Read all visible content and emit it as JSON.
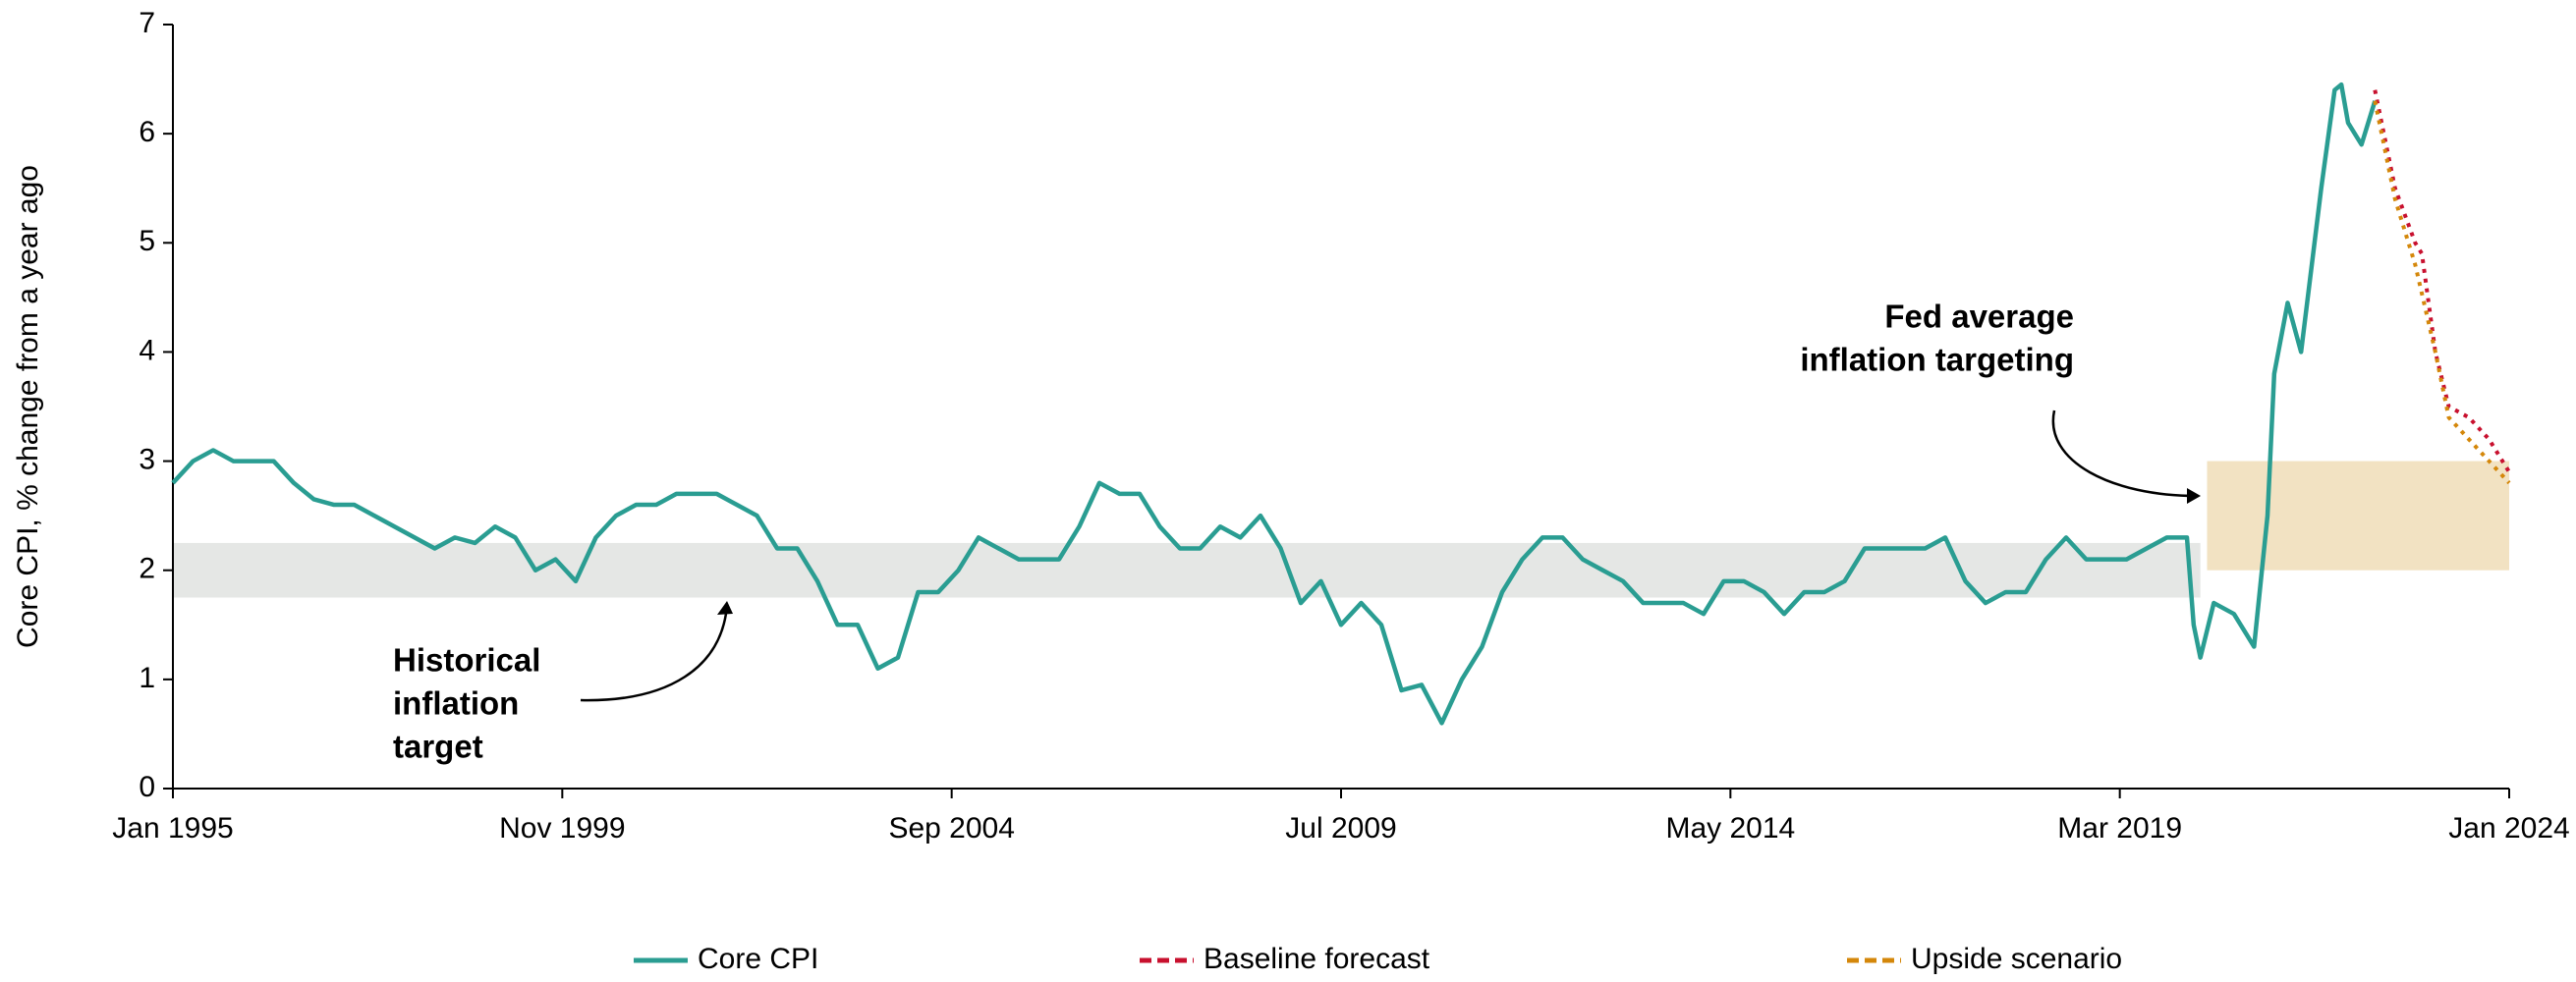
{
  "chart_data": {
    "type": "line",
    "y_label": "Core CPI, % change from a year ago",
    "xlim": [
      "1995-01",
      "2024-01"
    ],
    "xticks": [
      {
        "value": "1995-01",
        "label": "Jan 1995"
      },
      {
        "value": "1999-11",
        "label": "Nov 1999"
      },
      {
        "value": "2004-09",
        "label": "Sep 2004"
      },
      {
        "value": "2009-07",
        "label": "Jul 2009"
      },
      {
        "value": "2014-05",
        "label": "May 2014"
      },
      {
        "value": "2019-03",
        "label": "Mar 2019"
      },
      {
        "value": "2024-01",
        "label": "Jan 2024"
      }
    ],
    "ylim": [
      0,
      7
    ],
    "yticks": [
      0,
      1,
      2,
      3,
      4,
      5,
      6,
      7
    ],
    "bands": [
      {
        "x0": "1995-01",
        "x1": "2020-03",
        "y0": 1.75,
        "y1": 2.25,
        "color": "#e5e7e5"
      },
      {
        "x0": "2020-04",
        "x1": "2024-01",
        "y0": 2,
        "y1": 3,
        "color": "#f2e2c2"
      }
    ],
    "annotations": [
      {
        "lines": [
          "Historical",
          "inflation",
          "target"
        ]
      },
      {
        "lines": [
          "Fed average",
          "inflation targeting"
        ]
      }
    ],
    "series": [
      {
        "name": "Core CPI",
        "color": "#2a9d92",
        "x": [
          "1995-01",
          "1995-04",
          "1995-07",
          "1995-10",
          "1996-01",
          "1996-04",
          "1996-07",
          "1996-10",
          "1997-01",
          "1997-04",
          "1997-07",
          "1997-10",
          "1998-01",
          "1998-04",
          "1998-07",
          "1998-10",
          "1999-01",
          "1999-04",
          "1999-07",
          "1999-10",
          "2000-01",
          "2000-04",
          "2000-07",
          "2000-10",
          "2001-01",
          "2001-04",
          "2001-07",
          "2001-10",
          "2002-01",
          "2002-04",
          "2002-07",
          "2002-10",
          "2003-01",
          "2003-04",
          "2003-07",
          "2003-10",
          "2004-01",
          "2004-04",
          "2004-07",
          "2004-10",
          "2005-01",
          "2005-04",
          "2005-07",
          "2005-10",
          "2006-01",
          "2006-04",
          "2006-07",
          "2006-10",
          "2007-01",
          "2007-04",
          "2007-07",
          "2007-10",
          "2008-01",
          "2008-04",
          "2008-07",
          "2008-10",
          "2009-01",
          "2009-04",
          "2009-07",
          "2009-10",
          "2010-01",
          "2010-04",
          "2010-07",
          "2010-10",
          "2011-01",
          "2011-04",
          "2011-07",
          "2011-10",
          "2012-01",
          "2012-04",
          "2012-07",
          "2012-10",
          "2013-01",
          "2013-04",
          "2013-07",
          "2013-10",
          "2014-01",
          "2014-04",
          "2014-07",
          "2014-10",
          "2015-01",
          "2015-04",
          "2015-07",
          "2015-10",
          "2016-01",
          "2016-04",
          "2016-07",
          "2016-10",
          "2017-01",
          "2017-04",
          "2017-07",
          "2017-10",
          "2018-01",
          "2018-04",
          "2018-07",
          "2018-10",
          "2019-01",
          "2019-04",
          "2019-07",
          "2019-10",
          "2020-01",
          "2020-02",
          "2020-03",
          "2020-05",
          "2020-08",
          "2020-11",
          "2021-01",
          "2021-02",
          "2021-04",
          "2021-06",
          "2021-07",
          "2021-09",
          "2021-11",
          "2021-12",
          "2022-01",
          "2022-03",
          "2022-05"
        ],
        "values": [
          2.8,
          3.0,
          3.1,
          3.0,
          3.0,
          3.0,
          2.8,
          2.65,
          2.6,
          2.6,
          2.5,
          2.4,
          2.3,
          2.2,
          2.3,
          2.25,
          2.4,
          2.3,
          2.0,
          2.1,
          1.9,
          2.3,
          2.5,
          2.6,
          2.6,
          2.7,
          2.7,
          2.7,
          2.6,
          2.5,
          2.2,
          2.2,
          1.9,
          1.5,
          1.5,
          1.1,
          1.2,
          1.8,
          1.8,
          2.0,
          2.3,
          2.2,
          2.1,
          2.1,
          2.1,
          2.4,
          2.8,
          2.7,
          2.7,
          2.4,
          2.2,
          2.2,
          2.4,
          2.3,
          2.5,
          2.2,
          1.7,
          1.9,
          1.5,
          1.7,
          1.5,
          0.9,
          0.95,
          0.6,
          1.0,
          1.3,
          1.8,
          2.1,
          2.3,
          2.3,
          2.1,
          2.0,
          1.9,
          1.7,
          1.7,
          1.7,
          1.6,
          1.9,
          1.9,
          1.8,
          1.6,
          1.8,
          1.8,
          1.9,
          2.2,
          2.2,
          2.2,
          2.2,
          2.3,
          1.9,
          1.7,
          1.8,
          1.8,
          2.1,
          2.3,
          2.1,
          2.1,
          2.1,
          2.2,
          2.3,
          2.3,
          1.5,
          1.2,
          1.7,
          1.6,
          1.3,
          2.5,
          3.8,
          4.45,
          4.0,
          4.5,
          5.5,
          6.4,
          6.45,
          6.1,
          5.9,
          6.3
        ]
      },
      {
        "name": "Baseline forecast",
        "color": "#c8102e",
        "x": [
          "2022-05",
          "2022-08",
          "2022-11",
          "2022-12",
          "2023-02",
          "2023-04",
          "2023-07",
          "2023-10",
          "2024-01"
        ],
        "values": [
          6.4,
          5.5,
          5.0,
          4.9,
          4.0,
          3.5,
          3.4,
          3.2,
          2.9
        ]
      },
      {
        "name": "Upside scenario",
        "color": "#d4870a",
        "x": [
          "2022-05",
          "2022-08",
          "2022-11",
          "2023-02",
          "2023-04",
          "2023-07",
          "2023-10",
          "2024-01"
        ],
        "values": [
          6.3,
          5.4,
          4.8,
          4.0,
          3.4,
          3.2,
          3.0,
          2.8
        ]
      }
    ]
  }
}
